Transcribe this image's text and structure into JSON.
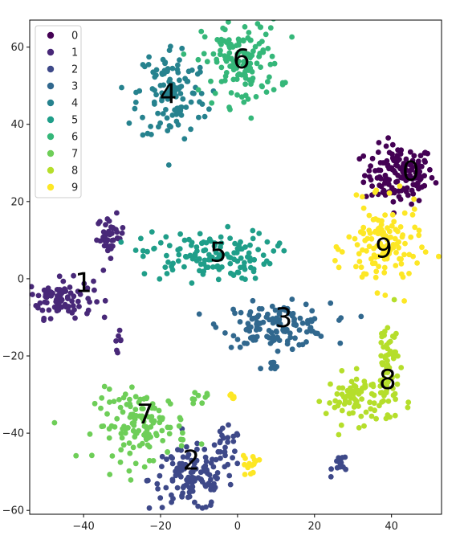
{
  "chart_data": {
    "type": "scatter",
    "title": "",
    "xlabel": "",
    "ylabel": "",
    "xlim": [
      -54,
      53
    ],
    "ylim": [
      -61,
      67
    ],
    "xticks": [
      -40,
      -20,
      0,
      20,
      40
    ],
    "yticks": [
      -60,
      -40,
      -20,
      0,
      20,
      40,
      60
    ],
    "grid": false,
    "legend_position": "top-left",
    "colors": {
      "0": "#440154",
      "1": "#482878",
      "2": "#3e4989",
      "3": "#31688e",
      "4": "#26828e",
      "5": "#1f9e89",
      "6": "#35b779",
      "7": "#6ece58",
      "8": "#b5de2b",
      "9": "#fde725"
    },
    "series": [
      {
        "name": "0",
        "label_pos": [
          45,
          28
        ],
        "blobs": [
          {
            "cx": 42,
            "cy": 27,
            "sx": 4.5,
            "sy": 3.8,
            "n": 150
          }
        ]
      },
      {
        "name": "1",
        "label_pos": [
          -40,
          -1
        ],
        "blobs": [
          {
            "cx": -46,
            "cy": -5,
            "sx": 4.2,
            "sy": 2.5,
            "n": 95
          },
          {
            "cx": -33,
            "cy": 11,
            "sx": 1.8,
            "sy": 2.6,
            "n": 40
          },
          {
            "cx": -31,
            "cy": -16,
            "sx": 0.4,
            "sy": 1.2,
            "n": 7
          }
        ]
      },
      {
        "name": "2",
        "label_pos": [
          -12,
          -47
        ],
        "blobs": [
          {
            "cx": -12,
            "cy": -52,
            "sx": 5.5,
            "sy": 4.0,
            "n": 120
          },
          {
            "cx": -3,
            "cy": -44,
            "sx": 2.0,
            "sy": 2.5,
            "n": 25
          },
          {
            "cx": 27,
            "cy": -48,
            "sx": 1.2,
            "sy": 1.3,
            "n": 14
          }
        ]
      },
      {
        "name": "3",
        "label_pos": [
          12,
          -10
        ],
        "blobs": [
          {
            "cx": 10,
            "cy": -12,
            "sx": 7.0,
            "sy": 2.8,
            "n": 130
          },
          {
            "cx": 9,
            "cy": -23,
            "sx": 0.8,
            "sy": 0.8,
            "n": 8
          }
        ]
      },
      {
        "name": "4",
        "label_pos": [
          -18,
          48
        ],
        "blobs": [
          {
            "cx": -17,
            "cy": 48,
            "sx": 4.5,
            "sy": 6.5,
            "n": 120
          }
        ]
      },
      {
        "name": "5",
        "label_pos": [
          -5,
          7
        ],
        "blobs": [
          {
            "cx": -8,
            "cy": 6,
            "sx": 8.5,
            "sy": 3.2,
            "n": 135
          }
        ]
      },
      {
        "name": "6",
        "label_pos": [
          1,
          57
        ],
        "blobs": [
          {
            "cx": 1,
            "cy": 56,
            "sx": 5.0,
            "sy": 5.5,
            "n": 140
          }
        ]
      },
      {
        "name": "7",
        "label_pos": [
          -24,
          -35
        ],
        "blobs": [
          {
            "cx": -25,
            "cy": -38,
            "sx": 6.0,
            "sy": 4.5,
            "n": 125
          },
          {
            "cx": -10,
            "cy": -31,
            "sx": 1.8,
            "sy": 0.8,
            "n": 9
          }
        ]
      },
      {
        "name": "8",
        "label_pos": [
          39,
          -26
        ],
        "blobs": [
          {
            "cx": 32,
            "cy": -31,
            "sx": 4.5,
            "sy": 3.2,
            "n": 90
          },
          {
            "cx": 39,
            "cy": -21,
            "sx": 1.5,
            "sy": 6.0,
            "n": 50
          }
        ]
      },
      {
        "name": "9",
        "label_pos": [
          38,
          8
        ],
        "blobs": [
          {
            "cx": 38,
            "cy": 8,
            "sx": 4.8,
            "sy": 5.5,
            "n": 130
          },
          {
            "cx": 3,
            "cy": -48,
            "sx": 1.2,
            "sy": 1.3,
            "n": 14
          },
          {
            "cx": -1,
            "cy": -30,
            "sx": 0.7,
            "sy": 0.8,
            "n": 6
          }
        ]
      }
    ]
  }
}
